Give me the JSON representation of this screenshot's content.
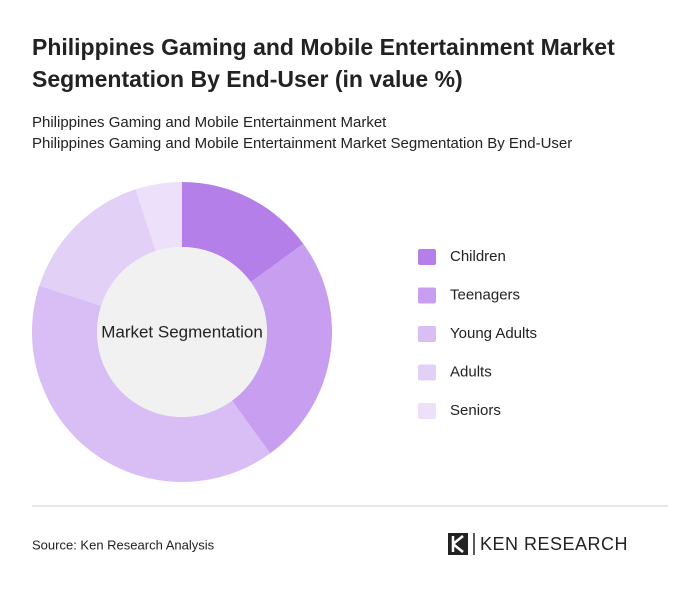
{
  "chart_data": {
    "type": "pie",
    "title": [
      "Philippines Gaming and Mobile Entertainment Market",
      "Segmentation By End-User (in value %)"
    ],
    "subtitle": [
      "Philippines Gaming and Mobile Entertainment Market",
      "Philippines Gaming and Mobile Entertainment Market Segmentation By End-User"
    ],
    "center_label": "Market Segmentation",
    "categories": [
      "Children",
      "Teenagers",
      "Young Adults",
      "Adults",
      "Seniors"
    ],
    "values": [
      15,
      25,
      40,
      15,
      5
    ],
    "colors": [
      "#b57fe9",
      "#c79ef0",
      "#d8bef5",
      "#e3d0f7",
      "#ece0fa"
    ],
    "legend": "right",
    "source": "Source: Ken Research Analysis",
    "logo": "KEN RESEARCH"
  }
}
